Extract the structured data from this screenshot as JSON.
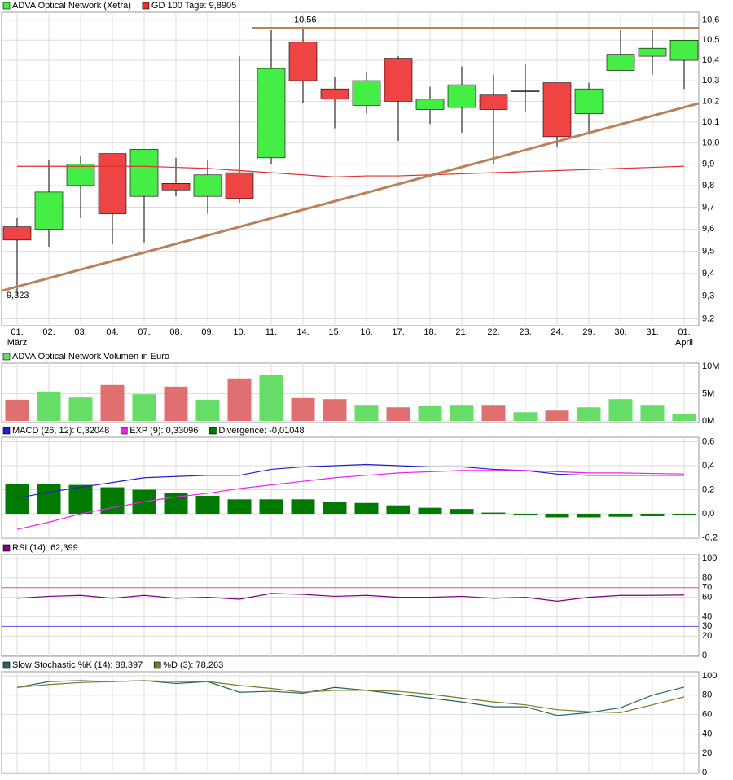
{
  "chart_data": [
    {
      "type": "candlestick",
      "log_scale": true,
      "grid": true,
      "categories": [
        "01.",
        "02.",
        "03.",
        "04.",
        "07.",
        "08.",
        "09.",
        "10.",
        "11.",
        "14.",
        "15.",
        "16.",
        "17.",
        "18.",
        "21.",
        "22.",
        "23.",
        "24.",
        "29.",
        "30.",
        "31.",
        "01."
      ],
      "category_sublabels": [
        "März",
        null,
        null,
        null,
        null,
        null,
        null,
        null,
        null,
        null,
        null,
        null,
        null,
        null,
        null,
        null,
        null,
        null,
        null,
        null,
        null,
        "April"
      ],
      "series": [
        {
          "name": "ADVA Optical Network (Xetra)",
          "type": "candlestick",
          "color": "#44ee44",
          "down_color": "#ee4444",
          "open": [
            9.61,
            9.6,
            9.8,
            9.95,
            9.75,
            9.81,
            9.75,
            9.86,
            9.93,
            10.49,
            10.26,
            10.18,
            10.41,
            10.16,
            10.17,
            10.23,
            10.25,
            10.29,
            10.14,
            10.35,
            10.42,
            10.4
          ],
          "high": [
            9.65,
            9.92,
            9.94,
            9.95,
            9.97,
            9.93,
            9.92,
            10.42,
            10.55,
            10.56,
            10.32,
            10.34,
            10.42,
            10.27,
            10.37,
            10.33,
            10.38,
            10.29,
            10.29,
            10.55,
            10.55,
            10.5
          ],
          "low": [
            9.31,
            9.52,
            9.65,
            9.53,
            9.54,
            9.75,
            9.67,
            9.72,
            9.9,
            10.19,
            10.07,
            10.14,
            10.01,
            10.09,
            10.05,
            9.9,
            10.15,
            9.98,
            10.04,
            10.35,
            10.33,
            10.26
          ],
          "close": [
            9.55,
            9.77,
            9.9,
            9.67,
            9.97,
            9.78,
            9.85,
            9.74,
            10.36,
            10.3,
            10.21,
            10.3,
            10.2,
            10.21,
            10.28,
            10.16,
            10.25,
            10.03,
            10.26,
            10.43,
            10.46,
            10.5
          ]
        },
        {
          "name": "GD 100 Tage: 9,8905",
          "type": "line",
          "color": "#e03030",
          "values": [
            9.89,
            9.89,
            9.89,
            9.89,
            9.89,
            9.885,
            9.88,
            9.87,
            9.86,
            9.85,
            9.84,
            9.845,
            9.845,
            9.85,
            9.855,
            9.86,
            9.865,
            9.87,
            9.875,
            9.88,
            9.885,
            9.8905
          ]
        }
      ],
      "annotations": [
        {
          "label": "10,56",
          "value": 10.56,
          "color": "#b8825a"
        },
        {
          "label": "9,323",
          "start": 9.323,
          "end": 10.19,
          "color": "#b8825a"
        }
      ],
      "ylim": [
        9.17,
        10.64
      ],
      "yticks": [
        {
          "value": 9.2,
          "label": "9,2"
        },
        {
          "value": 9.3,
          "label": "9,3"
        },
        {
          "value": 9.4,
          "label": "9,4"
        },
        {
          "value": 9.5,
          "label": "9,5"
        },
        {
          "value": 9.6,
          "label": "9,6"
        },
        {
          "value": 9.7,
          "label": "9,7"
        },
        {
          "value": 9.8,
          "label": "9,8"
        },
        {
          "value": 9.9,
          "label": "9,9"
        },
        {
          "value": 10.0,
          "label": "10,0"
        },
        {
          "value": 10.1,
          "label": "10,1"
        },
        {
          "value": 10.2,
          "label": "10,2"
        },
        {
          "value": 10.3,
          "label": "10,3"
        },
        {
          "value": 10.4,
          "label": "10,4"
        },
        {
          "value": 10.5,
          "label": "10,5"
        },
        {
          "value": 10.6,
          "label": "10,6"
        }
      ]
    },
    {
      "type": "bar",
      "grid": true,
      "series": [
        {
          "name": "ADVA Optical Network Volumen in Euro",
          "color": "#66dd66",
          "down_color": "#e07070",
          "values": [
            3.9,
            5.4,
            4.3,
            6.6,
            4.9,
            6.3,
            3.9,
            7.8,
            8.4,
            4.2,
            4.0,
            2.8,
            2.5,
            2.7,
            2.8,
            2.8,
            1.6,
            1.9,
            2.5,
            4.0,
            2.8,
            1.2
          ]
        }
      ],
      "ylim": [
        -0.3,
        10.6
      ],
      "yticks": [
        {
          "value": 0,
          "label": "0M"
        },
        {
          "value": 5,
          "label": "5M"
        },
        {
          "value": 10,
          "label": "10M"
        }
      ]
    },
    {
      "type": "combo",
      "grid": true,
      "series": [
        {
          "name": "MACD (26, 12): 0,32048",
          "type": "line",
          "color": "#2020cc",
          "values": [
            0.13,
            0.18,
            0.22,
            0.26,
            0.3,
            0.31,
            0.32,
            0.32,
            0.37,
            0.39,
            0.4,
            0.41,
            0.4,
            0.39,
            0.39,
            0.37,
            0.36,
            0.33,
            0.32,
            0.32,
            0.32,
            0.32048
          ]
        },
        {
          "name": "EXP (9): 0,33096",
          "type": "line",
          "color": "#ee22ee",
          "values": [
            -0.13,
            -0.07,
            0.0,
            0.05,
            0.1,
            0.14,
            0.17,
            0.21,
            0.24,
            0.27,
            0.3,
            0.32,
            0.34,
            0.35,
            0.36,
            0.36,
            0.36,
            0.35,
            0.34,
            0.34,
            0.335,
            0.33096
          ]
        },
        {
          "name": "Divergence: -0,01048",
          "type": "bar",
          "color": "#007a00",
          "values": [
            0.25,
            0.25,
            0.24,
            0.22,
            0.2,
            0.17,
            0.15,
            0.12,
            0.12,
            0.12,
            0.1,
            0.09,
            0.07,
            0.05,
            0.04,
            0.01,
            -0.003,
            -0.03,
            -0.03,
            -0.025,
            -0.02,
            -0.01048
          ]
        }
      ],
      "ylim": [
        -0.203,
        0.637
      ],
      "yticks": [
        {
          "value": -0.2,
          "label": "-0,2"
        },
        {
          "value": 0,
          "label": "0,0"
        },
        {
          "value": 0.2,
          "label": "0,2"
        },
        {
          "value": 0.4,
          "label": "0,4"
        },
        {
          "value": 0.6,
          "label": "0,6"
        }
      ]
    },
    {
      "type": "line",
      "grid": true,
      "series": [
        {
          "name": "RSI (14): 62,399",
          "color": "#800080",
          "values": [
            59,
            61,
            62,
            59,
            62,
            59,
            60,
            58,
            64,
            63,
            61,
            62,
            60,
            60,
            61,
            59,
            60,
            56,
            60,
            62,
            62,
            62.399
          ]
        }
      ],
      "levels": [
        {
          "value": 70,
          "color": "#ee5555"
        },
        {
          "value": 30,
          "color": "#5555ee"
        }
      ],
      "ylim": [
        -0.8,
        104.2
      ],
      "yticks": [
        0,
        20,
        40,
        60,
        80,
        100
      ]
    },
    {
      "type": "line",
      "grid": true,
      "series": [
        {
          "name": "Slow Stochastic %K (14): 88,397",
          "color": "#206868",
          "values": [
            88,
            94,
            95,
            94,
            95,
            92,
            94,
            83,
            84,
            82,
            88,
            85,
            81,
            77,
            73,
            68,
            68,
            59,
            62,
            67,
            80,
            88.397
          ]
        },
        {
          "name": "%D (3): 78,263",
          "color": "#7a7a20",
          "values": [
            88,
            91,
            93,
            94,
            95,
            94,
            94,
            90,
            87,
            83,
            85,
            85,
            84,
            81,
            77,
            73,
            70,
            65,
            63,
            62,
            70,
            78.263
          ]
        }
      ],
      "ylim": [
        -0.8,
        104.2
      ],
      "yticks": [
        0,
        20,
        40,
        60,
        80,
        100
      ]
    }
  ]
}
